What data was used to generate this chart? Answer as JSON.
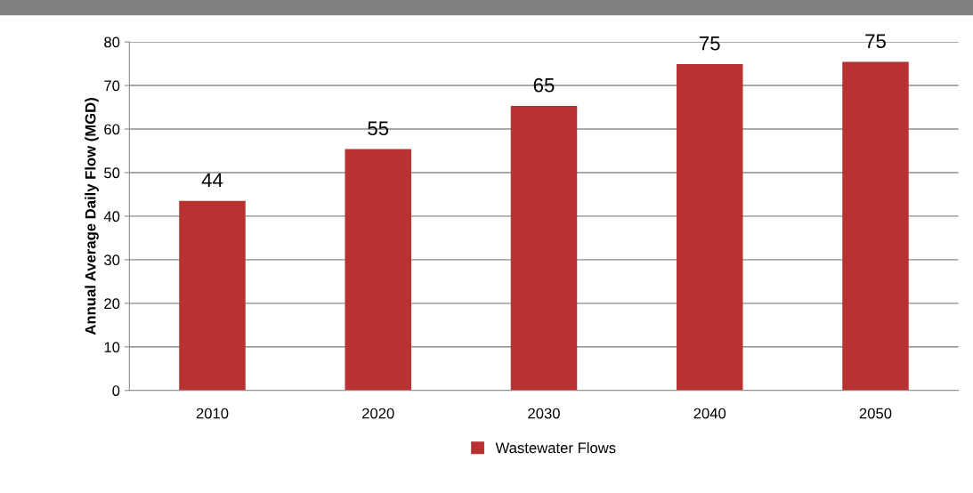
{
  "chart_data": {
    "type": "bar",
    "ylabel": "Annual Average Daily Flow (MGD)",
    "categories": [
      "2010",
      "2020",
      "2030",
      "2040",
      "2050"
    ],
    "series": [
      {
        "name": "Wastewater Flows",
        "color": "#b83232",
        "values": [
          43.5,
          55.4,
          65.3,
          74.9,
          75.4
        ],
        "value_labels": [
          "44",
          "55",
          "65",
          "75",
          "75"
        ]
      }
    ],
    "ylim": [
      0,
      80
    ],
    "yticks": [
      0,
      10,
      20,
      30,
      40,
      50,
      60,
      70,
      80
    ],
    "grid": "y",
    "legend": "bottom"
  }
}
